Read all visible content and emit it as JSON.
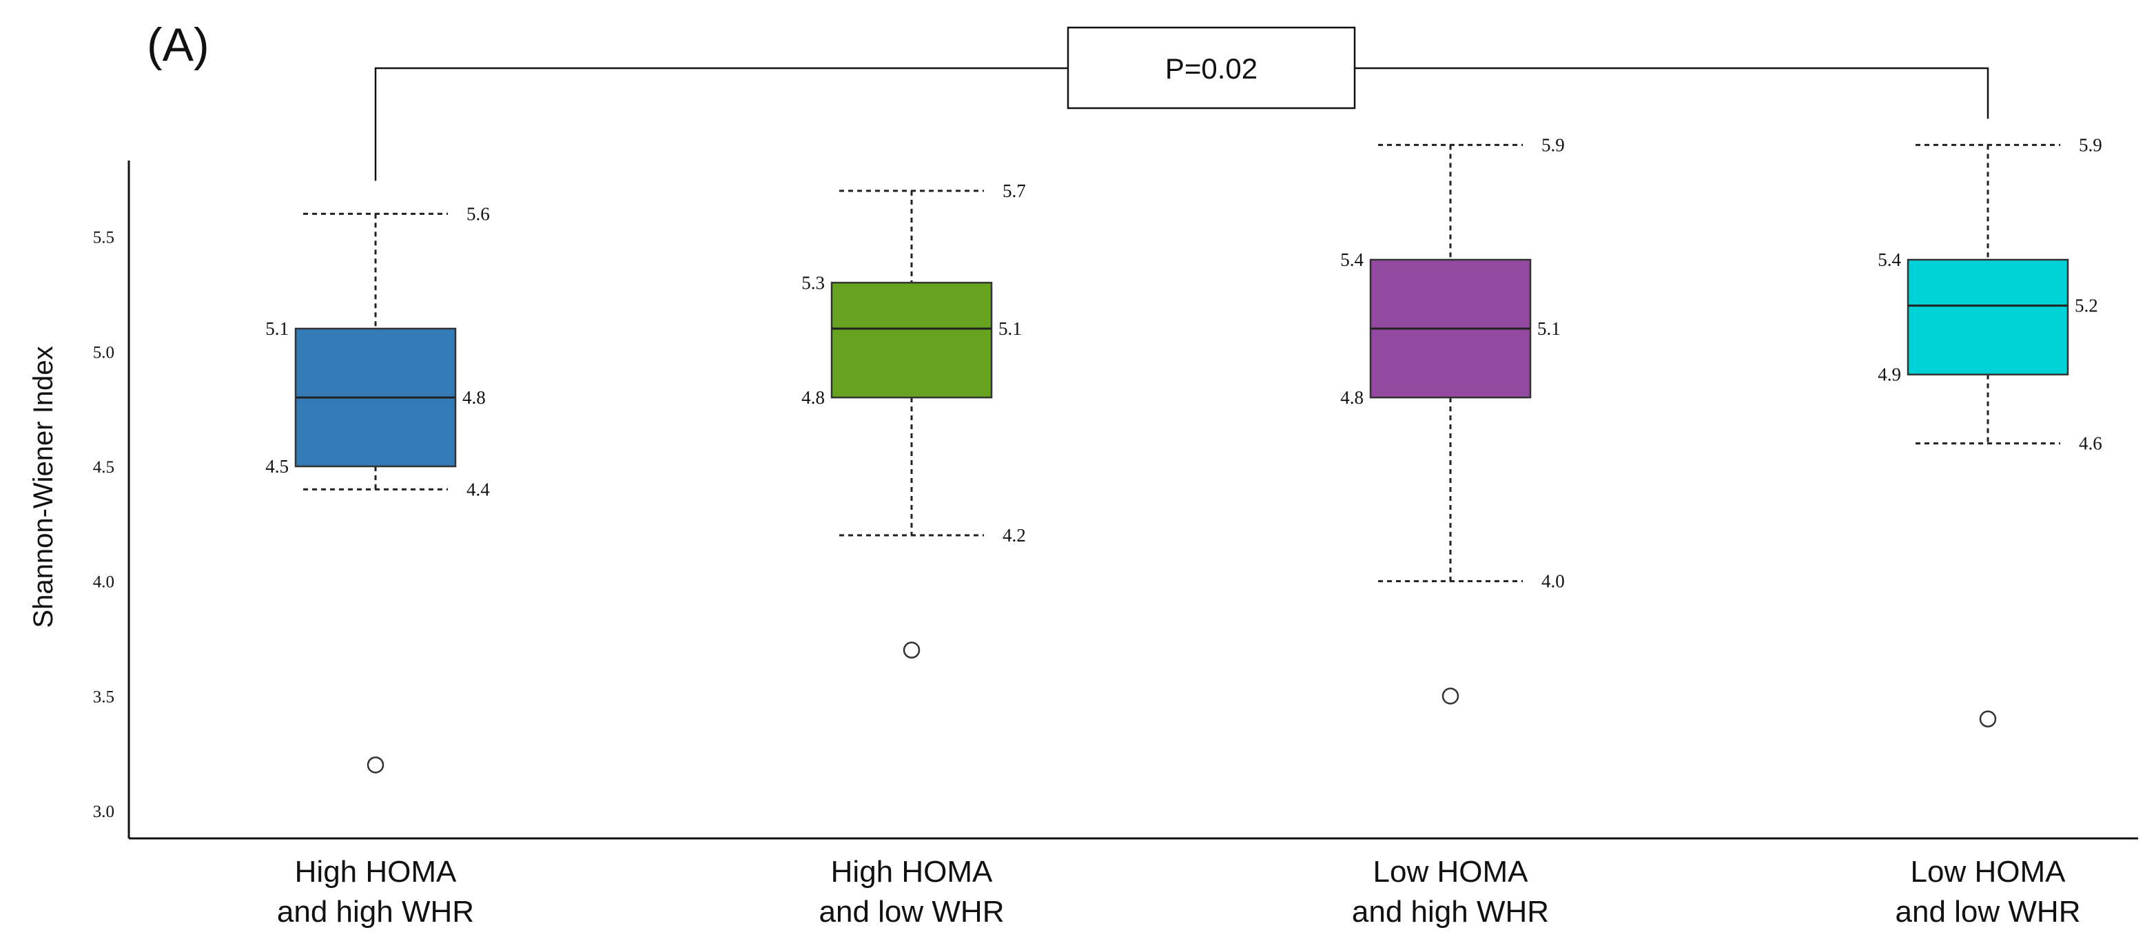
{
  "chart_data": {
    "type": "box",
    "panel_label": "(A)",
    "ylabel": "Shannon-Wiener Index",
    "ylim": [
      2.95,
      5.85
    ],
    "yticks": [
      "3.0",
      "3.5",
      "4.0",
      "4.5",
      "5.0",
      "5.5"
    ],
    "significance": {
      "text": "P=0.02",
      "from": 0,
      "to": 3
    },
    "groups": [
      {
        "name_lines": [
          "High HOMA",
          "and high WHR"
        ],
        "color": "#337ab7",
        "min": 4.4,
        "q1": 4.5,
        "median": 4.8,
        "q3": 5.1,
        "max": 5.6,
        "outlier": 3.2,
        "labels": {
          "max": "5.6",
          "q3": "5.1",
          "median": "4.8",
          "q1": "4.5",
          "min": "4.4"
        }
      },
      {
        "name_lines": [
          "High HOMA",
          "and low WHR"
        ],
        "color": "#66a31e",
        "min": 4.2,
        "q1": 4.8,
        "median": 5.1,
        "q3": 5.3,
        "max": 5.7,
        "outlier": 3.7,
        "labels": {
          "max": "5.7",
          "q3": "5.3",
          "median": "5.1",
          "q1": "4.8",
          "min": "4.2"
        }
      },
      {
        "name_lines": [
          "Low HOMA",
          "and high WHR"
        ],
        "color": "#9449a0",
        "min": 4.0,
        "q1": 4.8,
        "median": 5.1,
        "q3": 5.4,
        "max": 5.9,
        "outlier": 3.5,
        "labels": {
          "max": "5.9",
          "q3": "5.4",
          "median": "5.1",
          "q1": "4.8",
          "min": "4.0"
        }
      },
      {
        "name_lines": [
          "Low HOMA",
          "and low WHR"
        ],
        "color": "#00d1d6",
        "min": 4.6,
        "q1": 4.9,
        "median": 5.2,
        "q3": 5.4,
        "max": 5.9,
        "outlier": 3.4,
        "labels": {
          "max": "5.9",
          "q3": "5.4",
          "median": "5.2",
          "q1": "4.9",
          "min": "4.6"
        }
      }
    ]
  }
}
